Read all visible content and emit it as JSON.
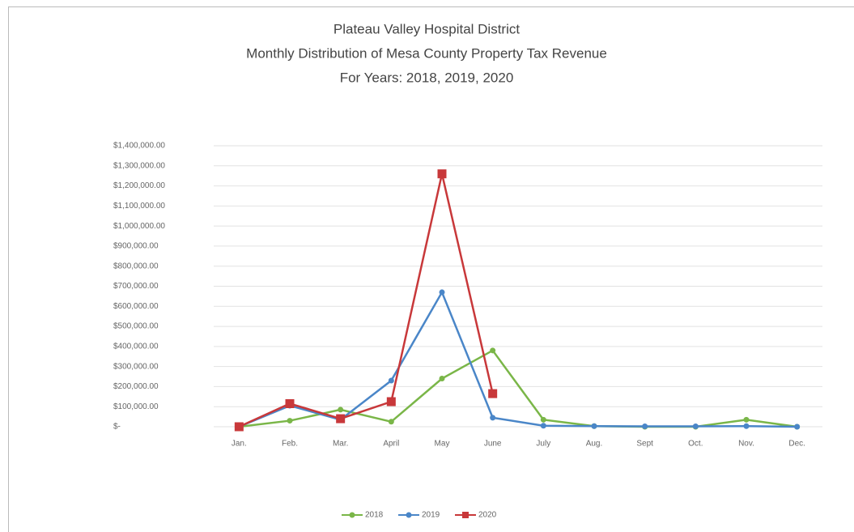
{
  "chart_data": {
    "type": "line",
    "title": "Plateau Valley Hospital District",
    "subtitle": "Monthly Distribution of Mesa County Property Tax Revenue",
    "subtitle2": "For Years:  2018, 2019, 2020",
    "categories": [
      "Jan.",
      "Feb.",
      "Mar.",
      "April",
      "May",
      "June",
      "July",
      "Aug.",
      "Sept",
      "Oct.",
      "Nov.",
      "Dec."
    ],
    "series": [
      {
        "name": "2018",
        "color": "#7ab648",
        "marker": "circle",
        "values": [
          0,
          30000,
          85000,
          25000,
          240000,
          380000,
          35000,
          3000,
          0,
          0,
          35000,
          0
        ]
      },
      {
        "name": "2019",
        "color": "#4a86c8",
        "marker": "circle",
        "values": [
          0,
          105000,
          35000,
          230000,
          670000,
          45000,
          5000,
          3000,
          2000,
          2000,
          3000,
          0
        ]
      },
      {
        "name": "2020",
        "color": "#c8383a",
        "marker": "square",
        "values": [
          0,
          115000,
          40000,
          125000,
          1260000,
          165000,
          null,
          null,
          null,
          null,
          null,
          null
        ]
      }
    ],
    "ylim": [
      0,
      1400000
    ],
    "yticks": [
      {
        "value": 0,
        "label": "$-"
      },
      {
        "value": 100000,
        "label": "$100,000.00"
      },
      {
        "value": 200000,
        "label": "$200,000.00"
      },
      {
        "value": 300000,
        "label": "$300,000.00"
      },
      {
        "value": 400000,
        "label": "$400,000.00"
      },
      {
        "value": 500000,
        "label": "$500,000.00"
      },
      {
        "value": 600000,
        "label": "$600,000.00"
      },
      {
        "value": 700000,
        "label": "$700,000.00"
      },
      {
        "value": 800000,
        "label": "$800,000.00"
      },
      {
        "value": 900000,
        "label": "$900,000.00"
      },
      {
        "value": 1000000,
        "label": "$1,000,000.00"
      },
      {
        "value": 1100000,
        "label": "$1,100,000.00"
      },
      {
        "value": 1200000,
        "label": "$1,200,000.00"
      },
      {
        "value": 1300000,
        "label": "$1,300,000.00"
      },
      {
        "value": 1400000,
        "label": "$1,400,000.00"
      }
    ],
    "grid": true,
    "legend": "bottom"
  }
}
